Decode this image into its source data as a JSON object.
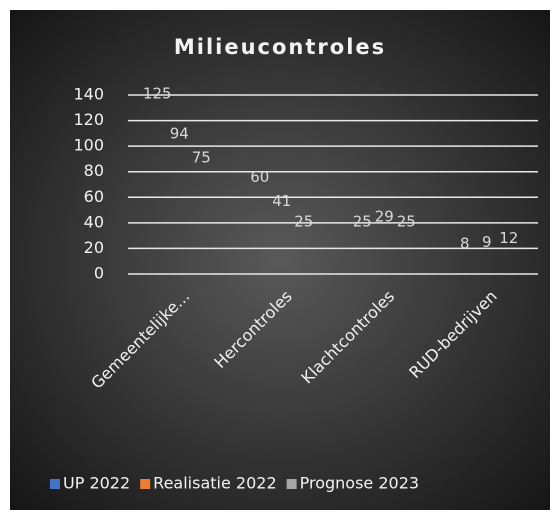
{
  "chart_data": {
    "type": "bar",
    "title": "Milieucontroles",
    "categories": [
      "Gemeentelijke...",
      "Hercontroles",
      "Klachtcontroles",
      "RUD-bedrijven"
    ],
    "series": [
      {
        "name": "UP 2022",
        "color": "#4472c4",
        "values": [
          125,
          60,
          25,
          8
        ]
      },
      {
        "name": "Realisatie 2022",
        "color": "#ed7d31",
        "values": [
          94,
          41,
          29,
          9
        ]
      },
      {
        "name": "Prognose 2023",
        "color": "#a5a5a5",
        "values": [
          75,
          25,
          25,
          12
        ]
      }
    ],
    "ylim": [
      0,
      140
    ],
    "yticks": [
      0,
      20,
      40,
      60,
      80,
      100,
      120,
      140
    ],
    "grid": true,
    "legend": "bottom"
  }
}
